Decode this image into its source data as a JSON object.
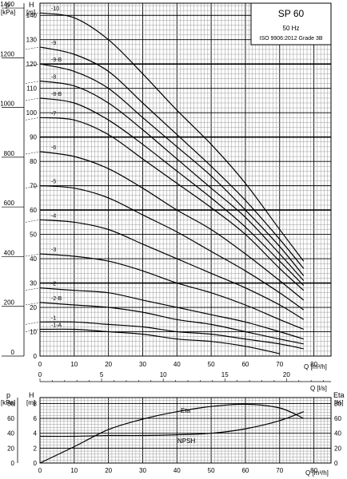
{
  "title_box": {
    "model": "SP 60",
    "frequency": "50 Hz",
    "standard": "ISO 9906:2012 Grade 3B"
  },
  "chart_data": [
    {
      "type": "line",
      "left_axis": {
        "unit": "p [kPa]",
        "ticks": [
          0,
          200,
          400,
          600,
          800,
          1000,
          1200,
          1400
        ]
      },
      "right_axis": {
        "unit": "H [m]",
        "ticks": [
          0,
          10,
          20,
          30,
          40,
          50,
          60,
          70,
          80,
          90,
          100,
          110,
          120,
          130,
          140
        ],
        "ylim": [
          0,
          145
        ]
      },
      "x_axis": {
        "unit": "Q [m³/h]",
        "ticks": [
          0,
          10,
          20,
          30,
          40,
          50,
          60,
          70,
          80
        ],
        "xlim": [
          0,
          85
        ]
      },
      "secondary_x_axis": {
        "unit": "Q [l/s]",
        "ticks": [
          0,
          5,
          10,
          15,
          20
        ]
      },
      "grid": true,
      "series": [
        {
          "name": "-10",
          "x": [
            0,
            10,
            20,
            30,
            40,
            50,
            60,
            70,
            77
          ],
          "y": [
            141,
            139,
            130,
            116,
            101,
            87,
            71,
            52,
            39
          ]
        },
        {
          "name": "-9",
          "x": [
            0,
            10,
            20,
            30,
            40,
            50,
            60,
            70,
            77
          ],
          "y": [
            127,
            124,
            117,
            104,
            91,
            78,
            64,
            48,
            36
          ]
        },
        {
          "name": "-9-B",
          "x": [
            0,
            10,
            20,
            30,
            40,
            50,
            60,
            70,
            77
          ],
          "y": [
            120,
            117,
            110,
            98,
            86,
            74,
            60,
            45,
            33
          ]
        },
        {
          "name": "-8",
          "x": [
            0,
            10,
            20,
            30,
            40,
            50,
            60,
            70,
            77
          ],
          "y": [
            113,
            111,
            104,
            93,
            81,
            69,
            57,
            42,
            31
          ]
        },
        {
          "name": "-8-B",
          "x": [
            0,
            10,
            20,
            30,
            40,
            50,
            60,
            70,
            77
          ],
          "y": [
            106,
            104,
            97,
            87,
            76,
            65,
            53,
            39,
            29
          ]
        },
        {
          "name": "-7",
          "x": [
            0,
            10,
            20,
            30,
            40,
            50,
            60,
            70,
            77
          ],
          "y": [
            98,
            97,
            91,
            81,
            71,
            61,
            50,
            36,
            27
          ]
        },
        {
          "name": "-6",
          "x": [
            0,
            10,
            20,
            30,
            40,
            50,
            60,
            70,
            77
          ],
          "y": [
            84,
            82,
            77,
            69,
            60,
            52,
            42,
            31,
            23
          ]
        },
        {
          "name": "-5",
          "x": [
            0,
            10,
            20,
            30,
            40,
            50,
            60,
            70,
            77
          ],
          "y": [
            70,
            69,
            65,
            58,
            51,
            43,
            35,
            26,
            19
          ]
        },
        {
          "name": "-4",
          "x": [
            0,
            10,
            20,
            30,
            40,
            50,
            60,
            70,
            77
          ],
          "y": [
            56,
            55,
            52,
            46,
            40,
            34,
            28,
            21,
            15
          ]
        },
        {
          "name": "-3",
          "x": [
            0,
            10,
            20,
            30,
            40,
            50,
            60,
            70,
            77
          ],
          "y": [
            42,
            41,
            39,
            35,
            30,
            26,
            21,
            15,
            11
          ]
        },
        {
          "name": "-2",
          "x": [
            0,
            10,
            20,
            30,
            40,
            50,
            60,
            70,
            77
          ],
          "y": [
            28,
            27,
            26,
            23,
            20,
            17,
            14,
            10,
            7
          ]
        },
        {
          "name": "-2-B",
          "x": [
            0,
            10,
            20,
            30,
            40,
            50,
            60,
            70,
            77
          ],
          "y": [
            22,
            21,
            20,
            18,
            15,
            13,
            10,
            7,
            5
          ]
        },
        {
          "name": "-1",
          "x": [
            0,
            10,
            20,
            30,
            40,
            50,
            60,
            70,
            77
          ],
          "y": [
            14,
            14,
            13,
            12,
            10,
            9,
            7,
            5,
            3
          ]
        },
        {
          "name": "-1-A",
          "x": [
            0,
            10,
            20,
            30,
            40,
            50,
            60,
            70
          ],
          "y": [
            11,
            11,
            10,
            9,
            7,
            6,
            4,
            1
          ]
        }
      ]
    },
    {
      "type": "line",
      "left_axis": {
        "unit": "p [kPa]",
        "ticks": [
          0,
          20,
          40,
          60,
          80
        ]
      },
      "middle_axis": {
        "unit": "H [m]",
        "ticks": [
          0,
          2,
          4,
          6,
          8
        ]
      },
      "right_axis": {
        "unit": "Eta [%]",
        "ticks": [
          0,
          20,
          40,
          60,
          80
        ]
      },
      "x_axis": {
        "unit": "Q [m³/h]",
        "ticks": [
          0,
          10,
          20,
          30,
          40,
          50,
          60,
          70,
          80
        ],
        "xlim": [
          0,
          85
        ]
      },
      "grid": true,
      "series": [
        {
          "name": "Eta",
          "x": [
            0,
            10,
            20,
            30,
            40,
            50,
            60,
            70,
            77
          ],
          "y": [
            0,
            22,
            45,
            59,
            69,
            76,
            79,
            74,
            60
          ]
        },
        {
          "name": "NPSH",
          "x": [
            0,
            10,
            20,
            30,
            40,
            50,
            60,
            70,
            77
          ],
          "y": [
            3.6,
            3.6,
            3.7,
            3.7,
            3.8,
            4.0,
            4.6,
            5.7,
            6.9
          ]
        }
      ]
    }
  ],
  "labels": {
    "p_main": "p",
    "kpa_main": "[kPa]",
    "h_main": "H",
    "m_main": "[m]",
    "q_m3h": "Q [m³/h]",
    "q_ls": "Q [l/s]",
    "p_small": "p",
    "kpa_small": "[kPa]",
    "h_small": "H",
    "m_small": "[m]",
    "eta_small": "Eta",
    "pct_small": "[%]",
    "q_m3h_small": "Q [m³/h]",
    "eta_curve": "Eta",
    "npsh_curve": "NPSH"
  }
}
